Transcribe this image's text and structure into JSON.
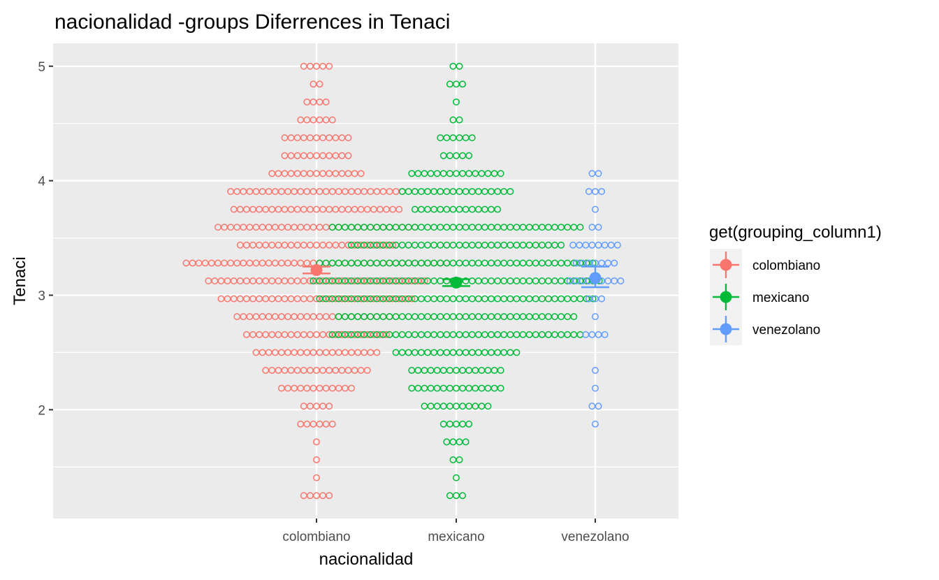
{
  "chart_data": {
    "type": "scatter",
    "subtype": "dotplot-with-mean-errorbars",
    "title": "nacionalidad -groups Diferrences in  Tenaci",
    "xlabel": "nacionalidad",
    "ylabel": "Tenaci",
    "categories": [
      "colombiano",
      "mexicano",
      "venezolano"
    ],
    "y_ticks": [
      2,
      3,
      4,
      5
    ],
    "y_tick_labels": [
      "2",
      "3",
      "4",
      "5"
    ],
    "ylim": [
      1.05,
      5.2
    ],
    "grid": true,
    "legend": {
      "title": "get(grouping_column1)",
      "placement": "right",
      "entries": [
        "colombiano",
        "mexicano",
        "venezolano"
      ]
    },
    "colors": {
      "colombiano": "#F8766D",
      "mexicano": "#00BA38",
      "venezolano": "#619CFF",
      "panel_bg": "#EBEBEB",
      "grid": "#FFFFFF"
    },
    "series": [
      {
        "name": "colombiano",
        "means": {
          "mean": 3.22,
          "lower": 3.19,
          "upper": 3.25
        },
        "dots": [
          {
            "y": 5.0,
            "count": 5
          },
          {
            "y": 4.844,
            "count": 2
          },
          {
            "y": 4.688,
            "count": 4
          },
          {
            "y": 4.531,
            "count": 6
          },
          {
            "y": 4.375,
            "count": 11
          },
          {
            "y": 4.219,
            "count": 11
          },
          {
            "y": 4.063,
            "count": 15
          },
          {
            "y": 3.906,
            "count": 28
          },
          {
            "y": 3.75,
            "count": 27
          },
          {
            "y": 3.594,
            "count": 32
          },
          {
            "y": 3.438,
            "count": 25
          },
          {
            "y": 3.281,
            "count": 42
          },
          {
            "y": 3.125,
            "count": 35
          },
          {
            "y": 2.969,
            "count": 31
          },
          {
            "y": 2.813,
            "count": 26
          },
          {
            "y": 2.656,
            "count": 23
          },
          {
            "y": 2.5,
            "count": 20
          },
          {
            "y": 2.344,
            "count": 17
          },
          {
            "y": 2.188,
            "count": 12
          },
          {
            "y": 2.031,
            "count": 5
          },
          {
            "y": 1.875,
            "count": 6
          },
          {
            "y": 1.719,
            "count": 1
          },
          {
            "y": 1.563,
            "count": 1
          },
          {
            "y": 1.406,
            "count": 1
          },
          {
            "y": 1.25,
            "count": 5
          }
        ]
      },
      {
        "name": "mexicano",
        "means": {
          "mean": 3.11,
          "lower": 3.08,
          "upper": 3.14
        },
        "dots": [
          {
            "y": 5.0,
            "count": 2
          },
          {
            "y": 4.844,
            "count": 3
          },
          {
            "y": 4.688,
            "count": 1
          },
          {
            "y": 4.531,
            "count": 2
          },
          {
            "y": 4.375,
            "count": 6
          },
          {
            "y": 4.219,
            "count": 5
          },
          {
            "y": 4.063,
            "count": 15
          },
          {
            "y": 3.906,
            "count": 18
          },
          {
            "y": 3.75,
            "count": 14
          },
          {
            "y": 3.594,
            "count": 40
          },
          {
            "y": 3.438,
            "count": 34
          },
          {
            "y": 3.281,
            "count": 44
          },
          {
            "y": 3.125,
            "count": 46
          },
          {
            "y": 2.969,
            "count": 44
          },
          {
            "y": 2.813,
            "count": 38
          },
          {
            "y": 2.656,
            "count": 40
          },
          {
            "y": 2.5,
            "count": 20
          },
          {
            "y": 2.344,
            "count": 15
          },
          {
            "y": 2.188,
            "count": 15
          },
          {
            "y": 2.031,
            "count": 11
          },
          {
            "y": 1.875,
            "count": 5
          },
          {
            "y": 1.719,
            "count": 4
          },
          {
            "y": 1.563,
            "count": 2
          },
          {
            "y": 1.406,
            "count": 1
          },
          {
            "y": 1.25,
            "count": 3
          }
        ]
      },
      {
        "name": "venezolano",
        "means": {
          "mean": 3.15,
          "lower": 3.07,
          "upper": 3.25
        },
        "dots": [
          {
            "y": 4.063,
            "count": 2
          },
          {
            "y": 3.906,
            "count": 3
          },
          {
            "y": 3.75,
            "count": 1
          },
          {
            "y": 3.594,
            "count": 2
          },
          {
            "y": 3.438,
            "count": 8
          },
          {
            "y": 3.281,
            "count": 7
          },
          {
            "y": 3.125,
            "count": 9
          },
          {
            "y": 2.969,
            "count": 3
          },
          {
            "y": 2.813,
            "count": 1
          },
          {
            "y": 2.656,
            "count": 4
          },
          {
            "y": 2.344,
            "count": 1
          },
          {
            "y": 2.188,
            "count": 1
          },
          {
            "y": 2.031,
            "count": 2
          },
          {
            "y": 1.875,
            "count": 1
          }
        ]
      }
    ]
  }
}
